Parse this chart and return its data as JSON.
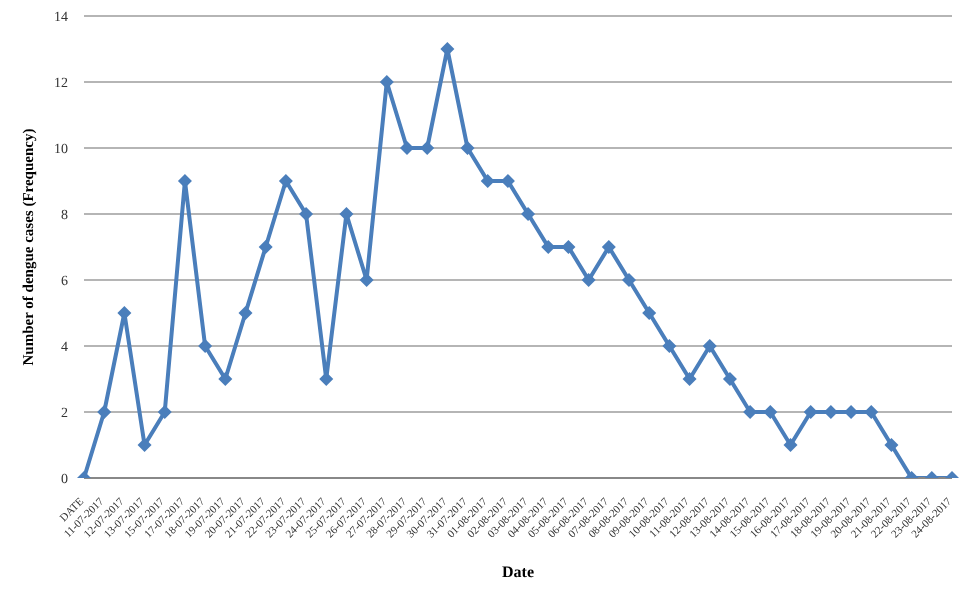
{
  "chart_data": {
    "type": "line",
    "xlabel": "Date",
    "ylabel": "Number of dengue cases (Frequency)",
    "categories": [
      "DATE",
      "11-07-2017",
      "12-07-2017",
      "13-07-2017",
      "15-07-2017",
      "17-07-2017",
      "18-07-2017",
      "19-07-2017",
      "20-07-2017",
      "21-07-2017",
      "22-07-2017",
      "23-07-2017",
      "24-07-2017",
      "25-07-2017",
      "26-07-2017",
      "27-07-2017",
      "28-07-2017",
      "29-07-2017",
      "30-07-2017",
      "31-07-2017",
      "01-08-2017",
      "02-08-2017",
      "03-08-2017",
      "04-08-2017",
      "05-08-2017",
      "06-08-2017",
      "07-08-2017",
      "08-08-2017",
      "09-08-2017",
      "10-08-2017",
      "11-08-2017",
      "12-08-2017",
      "13-08-2017",
      "14-08-2017",
      "15-08-2017",
      "16-08-2017",
      "17-08-2017",
      "18-08-2017",
      "19-08-2017",
      "20-08-2017",
      "21-08-2017",
      "22-08-2017",
      "23-08-2017",
      "24-08-2017"
    ],
    "series": [
      {
        "color": "#4a7ebb",
        "values": [
          0,
          2,
          5,
          1,
          2,
          9,
          4,
          3,
          5,
          7,
          9,
          8,
          3,
          8,
          6,
          12,
          10,
          10,
          13,
          10,
          9,
          9,
          8,
          7,
          7,
          6,
          7,
          6,
          5,
          4,
          3,
          4,
          3,
          2,
          2,
          1,
          2,
          2,
          2,
          2,
          1,
          0,
          0,
          0
        ]
      }
    ],
    "ylim": [
      0,
      14
    ],
    "yticks": [
      0,
      2,
      4,
      6,
      8,
      10,
      12,
      14
    ],
    "grid": "y",
    "marker": "diamond",
    "line_style": "solid",
    "legend": false
  }
}
